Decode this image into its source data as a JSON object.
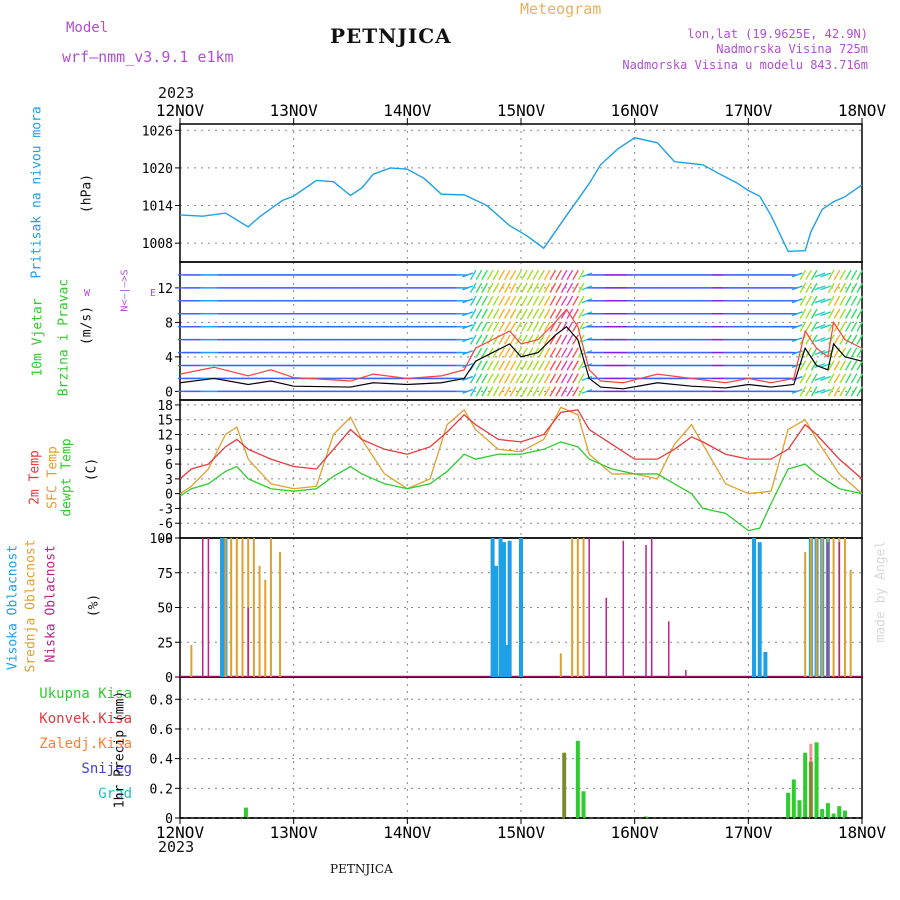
{
  "header": {
    "model_label": "Model",
    "model_name": "wrf—nmm_v3.9.1  e1km",
    "station": "PETNJICA",
    "meteogram_label": "Meteogram",
    "lonlat": "lon,lat (19.9625E, 42.9N)",
    "elevation": "Nadmorska Visina 725m",
    "model_elevation": "Nadmorska Visina u modelu 843.716m",
    "year_top": "2023",
    "year_bottom": "2023",
    "footer_station": "PETNJICA",
    "credit": "made by Angel"
  },
  "colors": {
    "pressure": "#1ea0e6",
    "wind_speed": "#000000",
    "gust": "#ff4040",
    "temp2m": "#e8393c",
    "sfc_temp": "#e0a030",
    "dewpoint": "#2ecc2e",
    "high_cloud": "#1ea0e6",
    "mid_cloud": "#e0a030",
    "low_cloud": "#c0208a",
    "total_precip": "#2ecc2e",
    "conv_precip": "#e8393c",
    "frozen_precip": "#ff8030",
    "snow": "#4040e0",
    "hail": "#20c0c0",
    "purple_text": "#b050d0",
    "meteogram_text": "#e8b060"
  },
  "panel_labels": {
    "pressure": [
      "Pritisak na nivou mora",
      "(hPa)"
    ],
    "wind": [
      "10m Vjetar",
      "Brzina i Pravac",
      "(m/s)"
    ],
    "wind_compass": [
      "N",
      "^",
      "S",
      "W",
      "<—|—>",
      "E"
    ],
    "temp": [
      "2m Temp",
      "SFC Temp",
      "dewpt Temp",
      "(C)"
    ],
    "cloud": [
      "Visoka Oblacnost",
      "Srednja Oblacnost",
      "Niska Oblacnost",
      "(%)"
    ],
    "precip_legend": [
      "Ukupna Kisa",
      "Konvek.Kisa",
      "Zaledj.Kisa",
      "Snijeg",
      "Grad"
    ],
    "precip_unit": "1hr Precip (mm)"
  },
  "chart_data": [
    {
      "type": "line",
      "name": "pressure",
      "x_ticks": [
        "12NOV",
        "13NOV",
        "14NOV",
        "15NOV",
        "16NOV",
        "17NOV",
        "18NOV"
      ],
      "ylabel": "(hPa)",
      "ylim": [
        1005,
        1027
      ],
      "yticks": [
        1008,
        1014,
        1020,
        1026
      ],
      "grid": true,
      "series": [
        {
          "x": [
            0,
            0.2,
            0.4,
            0.6,
            0.7,
            0.8,
            0.9,
            1.0,
            1.2,
            1.35,
            1.5,
            1.6,
            1.7,
            1.85,
            2.0,
            2.15,
            2.3,
            2.5,
            2.7,
            2.9,
            3.05,
            3.2,
            3.4,
            3.6,
            3.7,
            3.85,
            4.0,
            4.2,
            4.35,
            4.45,
            4.6,
            4.75,
            4.9,
            5.0,
            5.1,
            5.2,
            5.35,
            5.5,
            5.55,
            5.65,
            5.75,
            5.85,
            6.0
          ],
          "y": [
            1012.5,
            1012.3,
            1012.8,
            1010.6,
            1012.2,
            1013.5,
            1014.8,
            1015.5,
            1018.0,
            1017.8,
            1015.6,
            1016.8,
            1019.0,
            1020.0,
            1019.8,
            1018.3,
            1015.8,
            1015.7,
            1014.0,
            1010.8,
            1009.2,
            1007.2,
            1012.4,
            1017.5,
            1020.5,
            1023.0,
            1024.8,
            1024.0,
            1021.0,
            1020.8,
            1020.5,
            1019.0,
            1017.6,
            1016.4,
            1015.5,
            1012.4,
            1006.7,
            1006.8,
            1009.8,
            1013.4,
            1014.6,
            1015.4,
            1017.3
          ]
        }
      ]
    },
    {
      "type": "line",
      "name": "wind",
      "ylabel": "(m/s)",
      "ylim": [
        -1,
        15
      ],
      "yticks": [
        0,
        4,
        8,
        12
      ],
      "grid": true,
      "series": [
        {
          "name": "speed",
          "x": [
            0,
            0.3,
            0.6,
            0.8,
            1.0,
            1.5,
            1.7,
            2.0,
            2.3,
            2.5,
            2.6,
            2.75,
            2.9,
            3.0,
            3.15,
            3.3,
            3.4,
            3.5,
            3.6,
            3.7,
            3.9,
            4.2,
            4.5,
            4.8,
            5.0,
            5.2,
            5.4,
            5.5,
            5.6,
            5.7,
            5.75,
            5.85,
            6.0
          ],
          "y": [
            1.0,
            1.5,
            0.8,
            1.2,
            0.6,
            0.5,
            1.0,
            0.8,
            1.0,
            1.5,
            3.5,
            4.5,
            5.5,
            4.0,
            4.5,
            6.5,
            7.5,
            6.0,
            1.5,
            0.5,
            0.3,
            1.0,
            0.6,
            0.4,
            0.8,
            0.5,
            0.8,
            5.0,
            3.0,
            2.5,
            5.5,
            4.0,
            3.5
          ]
        },
        {
          "name": "gust",
          "x": [
            0,
            0.3,
            0.6,
            0.8,
            1.0,
            1.5,
            1.7,
            2.0,
            2.3,
            2.5,
            2.6,
            2.75,
            2.9,
            3.0,
            3.15,
            3.3,
            3.4,
            3.5,
            3.6,
            3.7,
            3.9,
            4.2,
            4.5,
            4.8,
            5.0,
            5.2,
            5.4,
            5.5,
            5.6,
            5.7,
            5.75,
            5.85,
            6.0
          ],
          "y": [
            2.0,
            2.8,
            1.8,
            2.5,
            1.6,
            1.2,
            2.0,
            1.5,
            1.8,
            2.5,
            5.0,
            6.0,
            7.0,
            5.5,
            6.0,
            8.0,
            9.5,
            7.5,
            2.5,
            1.2,
            1.0,
            2.0,
            1.5,
            1.0,
            1.5,
            1.0,
            1.5,
            7.0,
            5.0,
            4.0,
            8.0,
            6.0,
            5.0
          ]
        }
      ]
    },
    {
      "type": "line",
      "name": "temperature",
      "ylabel": "(C)",
      "ylim": [
        -9,
        19
      ],
      "yticks": [
        -9,
        -6,
        -3,
        0,
        3,
        6,
        9,
        12,
        15,
        18
      ],
      "grid": true,
      "series": [
        {
          "name": "2m Temp",
          "x": [
            0,
            0.1,
            0.25,
            0.4,
            0.5,
            0.6,
            0.8,
            1.0,
            1.2,
            1.35,
            1.5,
            1.6,
            1.8,
            2.0,
            2.2,
            2.35,
            2.5,
            2.6,
            2.8,
            3.0,
            3.2,
            3.35,
            3.5,
            3.6,
            3.8,
            4.0,
            4.2,
            4.35,
            4.5,
            4.6,
            4.8,
            5.0,
            5.2,
            5.35,
            5.5,
            5.6,
            5.8,
            6.0
          ],
          "y": [
            3,
            5,
            6,
            9.5,
            11,
            9,
            7,
            5.5,
            5,
            9,
            13,
            11,
            9,
            8,
            9.5,
            12.5,
            16,
            14,
            11,
            10.5,
            12,
            16.5,
            17,
            13,
            10,
            7,
            7,
            9,
            11.5,
            10.5,
            8,
            7,
            7,
            9,
            14,
            12,
            7,
            3
          ]
        },
        {
          "name": "SFC Temp",
          "x": [
            0,
            0.1,
            0.25,
            0.4,
            0.5,
            0.6,
            0.8,
            1.0,
            1.2,
            1.35,
            1.5,
            1.6,
            1.8,
            2.0,
            2.2,
            2.35,
            2.5,
            2.6,
            2.8,
            3.0,
            3.2,
            3.35,
            3.5,
            3.6,
            3.8,
            4.0,
            4.2,
            4.35,
            4.5,
            4.6,
            4.8,
            5.0,
            5.2,
            5.35,
            5.5,
            5.6,
            5.8,
            6.0
          ],
          "y": [
            0,
            1.5,
            5,
            12,
            13.5,
            7,
            2,
            1,
            1.5,
            12,
            15.5,
            11,
            4,
            1,
            3,
            14,
            17,
            13,
            9,
            8.5,
            11,
            17.5,
            16,
            8,
            4,
            4,
            3,
            10,
            14,
            10,
            2,
            0,
            0.5,
            13,
            15,
            11,
            4,
            0
          ]
        },
        {
          "name": "dewpt Temp",
          "x": [
            0,
            0.1,
            0.25,
            0.4,
            0.5,
            0.6,
            0.8,
            1.0,
            1.2,
            1.35,
            1.5,
            1.6,
            1.8,
            2.0,
            2.2,
            2.35,
            2.5,
            2.6,
            2.8,
            3.0,
            3.2,
            3.35,
            3.5,
            3.6,
            3.8,
            4.0,
            4.2,
            4.35,
            4.5,
            4.6,
            4.8,
            5.0,
            5.1,
            5.2,
            5.35,
            5.5,
            5.6,
            5.8,
            6.0
          ],
          "y": [
            -0.5,
            1,
            2,
            4.5,
            5.5,
            3,
            1,
            0.5,
            1,
            3.5,
            5.5,
            4,
            2,
            1,
            2,
            4.5,
            8,
            7,
            8,
            8,
            9,
            10.5,
            9.5,
            7,
            5,
            4,
            4,
            2,
            0,
            -3,
            -4,
            -7.5,
            -7,
            -2,
            5,
            6,
            4,
            1,
            0
          ]
        }
      ]
    },
    {
      "type": "bar",
      "name": "cloud",
      "ylabel": "(%)",
      "ylim": [
        0,
        100
      ],
      "yticks": [
        0,
        25,
        50,
        75,
        100
      ],
      "grid": true,
      "series": [
        {
          "name": "Visoka Oblacnost",
          "x": [
            0.37,
            0.38,
            0.4,
            2.75,
            2.78,
            2.82,
            2.85,
            2.88,
            2.9,
            3.0,
            5.05,
            5.1,
            5.15,
            5.55,
            5.6,
            5.65,
            5.7
          ],
          "values": [
            100,
            100,
            100,
            100,
            80,
            100,
            97,
            23,
            98,
            100,
            100,
            97,
            18,
            100,
            100,
            100,
            100
          ]
        },
        {
          "name": "Srednja Oblacnost",
          "x": [
            0.1,
            0.4,
            0.45,
            0.5,
            0.55,
            0.6,
            0.65,
            0.7,
            0.75,
            0.8,
            0.88,
            3.35,
            3.45,
            3.5,
            3.55,
            5.5,
            5.55,
            5.6,
            5.65,
            5.7,
            5.75,
            5.8,
            5.85,
            5.9
          ],
          "values": [
            23,
            100,
            100,
            100,
            100,
            100,
            100,
            80,
            70,
            100,
            90,
            17,
            100,
            100,
            100,
            90,
            100,
            100,
            100,
            100,
            100,
            100,
            100,
            77
          ]
        },
        {
          "name": "Niska Oblacnost",
          "x": [
            0.2,
            0.25,
            0.6,
            3.6,
            3.75,
            3.9,
            4.1,
            4.15,
            4.3,
            4.45,
            5.7,
            5.8
          ],
          "values": [
            100,
            100,
            50,
            100,
            57,
            98,
            95,
            100,
            40,
            5,
            97,
            97
          ]
        }
      ]
    },
    {
      "type": "bar",
      "name": "precipitation",
      "ylabel": "1hr Precip (mm)",
      "ylim": [
        0,
        0.95
      ],
      "yticks": [
        0,
        0.2,
        0.4,
        0.6,
        0.8
      ],
      "grid": true,
      "series": [
        {
          "name": "Ukupna Kisa",
          "x": [
            0.58,
            3.38,
            3.5,
            3.55,
            4.1,
            5.35,
            5.4,
            5.45,
            5.5,
            5.55,
            5.6,
            5.65,
            5.7,
            5.75,
            5.8,
            5.85
          ],
          "values": [
            0.07,
            0.44,
            0.52,
            0.18,
            0.01,
            0.17,
            0.26,
            0.12,
            0.44,
            0.38,
            0.51,
            0.06,
            0.1,
            0.03,
            0.08,
            0.05
          ]
        },
        {
          "name": "Konvek.Kisa",
          "x": [
            3.38,
            5.55
          ],
          "values": [
            0.44,
            0.5
          ]
        }
      ]
    }
  ]
}
